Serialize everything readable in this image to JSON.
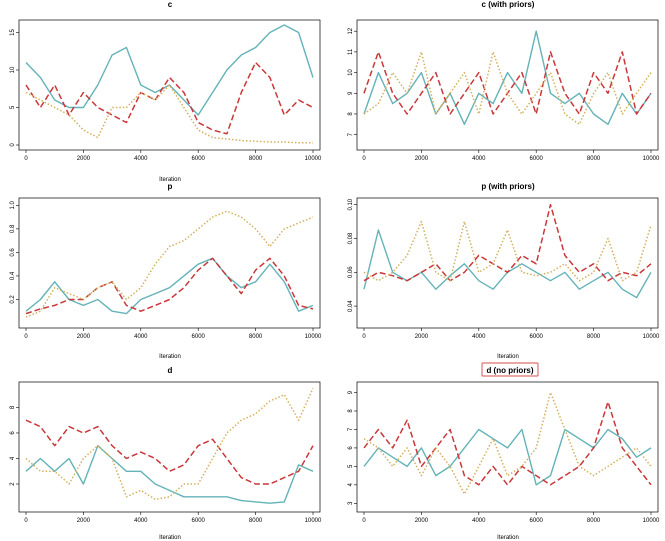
{
  "colors": {
    "series_1": "#63b3b8",
    "series_2": "#c9373a",
    "series_3": "#d4b05c",
    "highlight": "#e07070"
  },
  "chart_data": [
    {
      "type": "line",
      "title": "c",
      "xlabel": "Iteration",
      "ylabel": "",
      "xlim": [
        0,
        10000
      ],
      "ylim": [
        0,
        16
      ],
      "xticks": [
        "0",
        "2000",
        "4000",
        "6000",
        "8000",
        "10000"
      ],
      "yticks": [
        "0",
        "5",
        "10",
        "15"
      ],
      "series": [
        {
          "style": "solid",
          "x": [
            0,
            500,
            1000,
            1500,
            2000,
            2500,
            3000,
            3500,
            4000,
            4500,
            5000,
            5500,
            6000,
            6500,
            7000,
            7500,
            8000,
            8500,
            9000,
            9500,
            10000
          ],
          "values": [
            11,
            9,
            6,
            5,
            5,
            8,
            12,
            13,
            8,
            7,
            8,
            6,
            4,
            7,
            10,
            12,
            13,
            15,
            16,
            15,
            9
          ]
        },
        {
          "style": "dashed",
          "x": [
            0,
            500,
            1000,
            1500,
            2000,
            2500,
            3000,
            3500,
            4000,
            4500,
            5000,
            5500,
            6000,
            6500,
            7000,
            7500,
            8000,
            8500,
            9000,
            9500,
            10000
          ],
          "values": [
            8,
            5,
            8,
            4,
            7,
            5,
            4,
            3,
            7,
            6,
            9,
            7,
            3,
            2,
            1.5,
            7,
            11,
            9,
            4,
            6,
            5
          ]
        },
        {
          "style": "dotted",
          "x": [
            0,
            500,
            1000,
            1500,
            2000,
            2500,
            3000,
            3500,
            4000,
            4500,
            5000,
            5500,
            6000,
            6500,
            7000,
            7500,
            8000,
            8500,
            9000,
            9500,
            10000
          ],
          "values": [
            7,
            6,
            5,
            4,
            2,
            1,
            5,
            5,
            7,
            6,
            8,
            5,
            2,
            1,
            0.8,
            0.6,
            0.5,
            0.4,
            0.4,
            0.3,
            0.3
          ]
        }
      ]
    },
    {
      "type": "line",
      "title": "c (with priors)",
      "xlabel": "",
      "ylabel": "",
      "xlim": [
        0,
        10000
      ],
      "ylim": [
        6.5,
        12.3
      ],
      "xticks": [
        "0",
        "2000",
        "4000",
        "6000",
        "8000",
        "10000"
      ],
      "yticks": [
        "7",
        "8",
        "9",
        "10",
        "11",
        "12"
      ],
      "series": [
        {
          "style": "solid",
          "x": [
            0,
            500,
            1000,
            1500,
            2000,
            2500,
            3000,
            3500,
            4000,
            4500,
            5000,
            5500,
            6000,
            6500,
            7000,
            7500,
            8000,
            8500,
            9000,
            9500,
            10000
          ],
          "values": [
            8,
            10,
            8.5,
            9,
            10,
            8,
            9,
            7.5,
            9,
            8.5,
            10,
            9,
            12,
            9,
            8.5,
            9,
            8,
            7.5,
            9,
            8,
            9
          ]
        },
        {
          "style": "dashed",
          "x": [
            0,
            500,
            1000,
            1500,
            2000,
            2500,
            3000,
            3500,
            4000,
            4500,
            5000,
            5500,
            6000,
            6500,
            7000,
            7500,
            8000,
            8500,
            9000,
            9500,
            10000
          ],
          "values": [
            9,
            11,
            9,
            8,
            9,
            10,
            8,
            9,
            10,
            8,
            9,
            10,
            8,
            11,
            9,
            8,
            10,
            9,
            11,
            8,
            9
          ]
        },
        {
          "style": "dotted",
          "x": [
            0,
            500,
            1000,
            1500,
            2000,
            2500,
            3000,
            3500,
            4000,
            4500,
            5000,
            5500,
            6000,
            6500,
            7000,
            7500,
            8000,
            8500,
            9000,
            9500,
            10000
          ],
          "values": [
            8,
            8.5,
            10,
            9,
            11,
            8,
            9,
            10,
            8,
            11,
            9,
            8,
            9,
            10,
            8,
            7.5,
            9,
            10,
            8,
            9,
            10
          ]
        }
      ]
    },
    {
      "type": "line",
      "title": "p",
      "xlabel": "Iteration",
      "ylabel": "",
      "xlim": [
        0,
        10000
      ],
      "ylim": [
        0,
        1.02
      ],
      "xticks": [
        "0",
        "2000",
        "4000",
        "6000",
        "8000",
        "10000"
      ],
      "yticks": [
        "0.2",
        "0.4",
        "0.6",
        "0.8",
        "1.0"
      ],
      "series": [
        {
          "style": "solid",
          "x": [
            0,
            500,
            1000,
            1500,
            2000,
            2500,
            3000,
            3500,
            4000,
            4500,
            5000,
            5500,
            6000,
            6500,
            7000,
            7500,
            8000,
            8500,
            9000,
            9500,
            10000
          ],
          "values": [
            0.1,
            0.2,
            0.35,
            0.2,
            0.15,
            0.2,
            0.1,
            0.08,
            0.2,
            0.25,
            0.3,
            0.4,
            0.5,
            0.55,
            0.4,
            0.3,
            0.35,
            0.5,
            0.35,
            0.1,
            0.15
          ]
        },
        {
          "style": "dashed",
          "x": [
            0,
            500,
            1000,
            1500,
            2000,
            2500,
            3000,
            3500,
            4000,
            4500,
            5000,
            5500,
            6000,
            6500,
            7000,
            7500,
            8000,
            8500,
            9000,
            9500,
            10000
          ],
          "values": [
            0.08,
            0.12,
            0.15,
            0.2,
            0.2,
            0.3,
            0.35,
            0.15,
            0.1,
            0.15,
            0.2,
            0.3,
            0.45,
            0.55,
            0.4,
            0.25,
            0.45,
            0.55,
            0.4,
            0.15,
            0.12
          ]
        },
        {
          "style": "dotted",
          "x": [
            0,
            500,
            1000,
            1500,
            2000,
            2500,
            3000,
            3500,
            4000,
            4500,
            5000,
            5500,
            6000,
            6500,
            7000,
            7500,
            8000,
            8500,
            9000,
            9500,
            10000
          ],
          "values": [
            0.05,
            0.1,
            0.3,
            0.25,
            0.2,
            0.3,
            0.35,
            0.2,
            0.3,
            0.5,
            0.65,
            0.7,
            0.8,
            0.9,
            0.95,
            0.9,
            0.8,
            0.65,
            0.8,
            0.85,
            0.9
          ]
        }
      ]
    },
    {
      "type": "line",
      "title": "p (with priors)",
      "xlabel": "Iteration",
      "ylabel": "",
      "xlim": [
        0,
        10000
      ],
      "ylim": [
        0.03,
        0.101
      ],
      "xticks": [
        "0",
        "2000",
        "4000",
        "6000",
        "8000",
        "10000"
      ],
      "yticks": [
        "0.04",
        "0.06",
        "0.08",
        "0.10"
      ],
      "series": [
        {
          "style": "solid",
          "x": [
            0,
            500,
            1000,
            1500,
            2000,
            2500,
            3000,
            3500,
            4000,
            4500,
            5000,
            5500,
            6000,
            6500,
            7000,
            7500,
            8000,
            8500,
            9000,
            9500,
            10000
          ],
          "values": [
            0.05,
            0.085,
            0.06,
            0.055,
            0.06,
            0.05,
            0.058,
            0.065,
            0.055,
            0.05,
            0.06,
            0.065,
            0.06,
            0.055,
            0.06,
            0.05,
            0.055,
            0.06,
            0.05,
            0.045,
            0.06
          ]
        },
        {
          "style": "dashed",
          "x": [
            0,
            500,
            1000,
            1500,
            2000,
            2500,
            3000,
            3500,
            4000,
            4500,
            5000,
            5500,
            6000,
            6500,
            7000,
            7500,
            8000,
            8500,
            9000,
            9500,
            10000
          ],
          "values": [
            0.055,
            0.06,
            0.058,
            0.055,
            0.06,
            0.065,
            0.055,
            0.06,
            0.07,
            0.065,
            0.06,
            0.07,
            0.065,
            0.1,
            0.07,
            0.06,
            0.065,
            0.055,
            0.06,
            0.058,
            0.065
          ]
        },
        {
          "style": "dotted",
          "x": [
            0,
            500,
            1000,
            1500,
            2000,
            2500,
            3000,
            3500,
            4000,
            4500,
            5000,
            5500,
            6000,
            6500,
            7000,
            7500,
            8000,
            8500,
            9000,
            9500,
            10000
          ],
          "values": [
            0.06,
            0.055,
            0.06,
            0.07,
            0.09,
            0.06,
            0.055,
            0.09,
            0.06,
            0.065,
            0.085,
            0.06,
            0.058,
            0.06,
            0.065,
            0.055,
            0.06,
            0.08,
            0.055,
            0.06,
            0.088
          ]
        }
      ]
    },
    {
      "type": "line",
      "title": "d",
      "xlabel": "Iteration",
      "ylabel": "",
      "xlim": [
        0,
        10000
      ],
      "ylim": [
        0.2,
        9.6
      ],
      "xticks": [
        "0",
        "2000",
        "4000",
        "6000",
        "8000",
        "10000"
      ],
      "yticks": [
        "2",
        "4",
        "6",
        "8"
      ],
      "series": [
        {
          "style": "solid",
          "x": [
            0,
            500,
            1000,
            1500,
            2000,
            2500,
            3000,
            3500,
            4000,
            4500,
            5000,
            5500,
            6000,
            6500,
            7000,
            7500,
            8000,
            8500,
            9000,
            9500,
            10000
          ],
          "values": [
            3,
            4,
            3,
            4,
            2,
            5,
            4,
            3,
            3,
            2,
            1.5,
            1,
            1,
            1,
            1,
            0.7,
            0.6,
            0.5,
            0.6,
            3.5,
            3
          ]
        },
        {
          "style": "dashed",
          "x": [
            0,
            500,
            1000,
            1500,
            2000,
            2500,
            3000,
            3500,
            4000,
            4500,
            5000,
            5500,
            6000,
            6500,
            7000,
            7500,
            8000,
            8500,
            9000,
            9500,
            10000
          ],
          "values": [
            7,
            6.5,
            5,
            6.5,
            6,
            6.5,
            5,
            4,
            4.5,
            4,
            3,
            3.5,
            5,
            5.5,
            4,
            2.5,
            2,
            2,
            2.5,
            3,
            5
          ]
        },
        {
          "style": "dotted",
          "x": [
            0,
            500,
            1000,
            1500,
            2000,
            2500,
            3000,
            3500,
            4000,
            4500,
            5000,
            5500,
            6000,
            6500,
            7000,
            7500,
            8000,
            8500,
            9000,
            9500,
            10000
          ],
          "values": [
            4,
            3,
            3,
            2,
            4,
            5,
            4,
            1,
            1.5,
            0.8,
            1,
            2,
            2,
            4,
            6,
            7,
            7.5,
            8.5,
            9,
            7,
            9.5
          ]
        }
      ]
    },
    {
      "type": "line",
      "title": "d (no priors)",
      "xlabel": "Iteration",
      "ylabel": "",
      "xlim": [
        0,
        10000
      ],
      "ylim": [
        2.8,
        9.3
      ],
      "xticks": [
        "0",
        "2000",
        "4000",
        "6000",
        "8000",
        "10000"
      ],
      "yticks": [
        "3",
        "4",
        "5",
        "6",
        "7",
        "8",
        "9"
      ],
      "series": [
        {
          "style": "solid",
          "x": [
            0,
            500,
            1000,
            1500,
            2000,
            2500,
            3000,
            3500,
            4000,
            4500,
            5000,
            5500,
            6000,
            6500,
            7000,
            7500,
            8000,
            8500,
            9000,
            9500,
            10000
          ],
          "values": [
            5,
            6,
            5.5,
            5,
            6,
            4.5,
            5,
            6,
            7,
            6.5,
            6,
            7,
            4,
            4.5,
            7,
            6.5,
            6,
            7,
            6.5,
            5.5,
            6
          ]
        },
        {
          "style": "dashed",
          "x": [
            0,
            500,
            1000,
            1500,
            2000,
            2500,
            3000,
            3500,
            4000,
            4500,
            5000,
            5500,
            6000,
            6500,
            7000,
            7500,
            8000,
            8500,
            9000,
            9500,
            10000
          ],
          "values": [
            6,
            7,
            6,
            7.5,
            5,
            6,
            7,
            4.5,
            4,
            5,
            4,
            5,
            4.5,
            4,
            4.5,
            5,
            6,
            8.5,
            6,
            5,
            4
          ]
        },
        {
          "style": "dotted",
          "x": [
            0,
            500,
            1000,
            1500,
            2000,
            2500,
            3000,
            3500,
            4000,
            4500,
            5000,
            5500,
            6000,
            6500,
            7000,
            7500,
            8000,
            8500,
            9000,
            9500,
            10000
          ],
          "values": [
            6.5,
            6,
            5,
            6,
            4.5,
            6,
            5,
            3.5,
            5,
            6.5,
            4.5,
            5,
            6,
            9,
            7,
            5,
            4.5,
            5,
            5.5,
            6,
            5
          ]
        }
      ]
    }
  ]
}
